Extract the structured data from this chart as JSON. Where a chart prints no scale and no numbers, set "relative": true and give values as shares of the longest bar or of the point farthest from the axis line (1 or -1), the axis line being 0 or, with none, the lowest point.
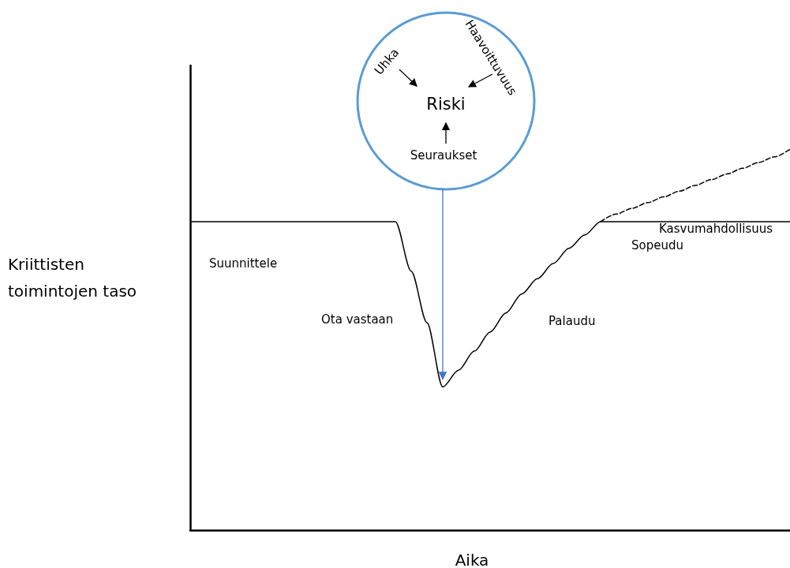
{
  "chart_data": {
    "type": "line",
    "relative": true,
    "xlabel": "Aika",
    "ylabel": "Kriittisten toimintojen taso",
    "categories": [
      null,
      null,
      null,
      null,
      null,
      null,
      null,
      null,
      null,
      null,
      null,
      null,
      null,
      null,
      null,
      null,
      null,
      null,
      null,
      null,
      null,
      null,
      null,
      null,
      null,
      null,
      null,
      null,
      null,
      null,
      null,
      null,
      null,
      null,
      null,
      null,
      null,
      null,
      null
    ],
    "series": [
      {
        "color": "#000000",
        "line_style": "solid",
        "values": [
          0.81,
          0.81,
          0.81,
          0.81,
          0.81,
          0.81,
          0.81,
          0.81,
          0.81,
          0.81,
          0.81,
          0.81,
          0.81,
          0.81,
          0.68,
          0.545,
          0.376,
          0.42,
          0.47,
          0.52,
          0.57,
          0.62,
          0.66,
          0.7,
          0.74,
          0.775,
          0.81,
          0.81,
          0.81,
          0.81,
          0.81,
          0.81,
          0.81,
          0.81,
          0.81,
          0.81,
          0.81,
          0.81,
          0.81
        ]
      },
      {
        "color": "#000000",
        "line_style": "dashed",
        "values": [
          null,
          null,
          null,
          null,
          null,
          null,
          null,
          null,
          null,
          null,
          null,
          null,
          null,
          null,
          null,
          null,
          null,
          null,
          null,
          null,
          null,
          null,
          null,
          null,
          null,
          null,
          0.81,
          0.83,
          0.845,
          0.86,
          0.875,
          0.89,
          0.905,
          0.92,
          0.935,
          0.95,
          0.965,
          0.98,
          1
        ]
      }
    ],
    "marker": "none",
    "grid": false,
    "annotations": [
      "Suunnittele",
      "Ota vastaan",
      "Palaudu",
      "Sopeudu",
      "Kasvumahdollisuus",
      "Uhka",
      "Haavoittuvuus",
      "Riski",
      "Seuraukset"
    ]
  }
}
